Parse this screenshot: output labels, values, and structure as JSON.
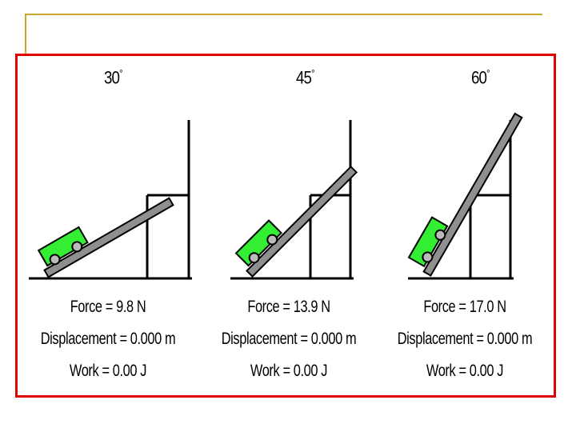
{
  "colors": {
    "frame": "#e00000",
    "accent_rule": "#c8a72a",
    "cart": "#33ee33",
    "ramp": "#8f8f8f"
  },
  "panels": [
    {
      "angle": 30,
      "angle_label": "30",
      "degree_symbol": "°",
      "force": "Force =  9.8 N",
      "displacement": "Displacement = 0.000 m",
      "work": "Work = 0.00 J"
    },
    {
      "angle": 45,
      "angle_label": "45",
      "degree_symbol": "°",
      "force": "Force = 13.9 N",
      "displacement": "Displacement = 0.000 m",
      "work": "Work = 0.00 J"
    },
    {
      "angle": 60,
      "angle_label": "60",
      "degree_symbol": "°",
      "force": "Force = 17.0 N",
      "displacement": "Displacement = 0.000 m",
      "work": "Work = 0.00 J"
    }
  ]
}
